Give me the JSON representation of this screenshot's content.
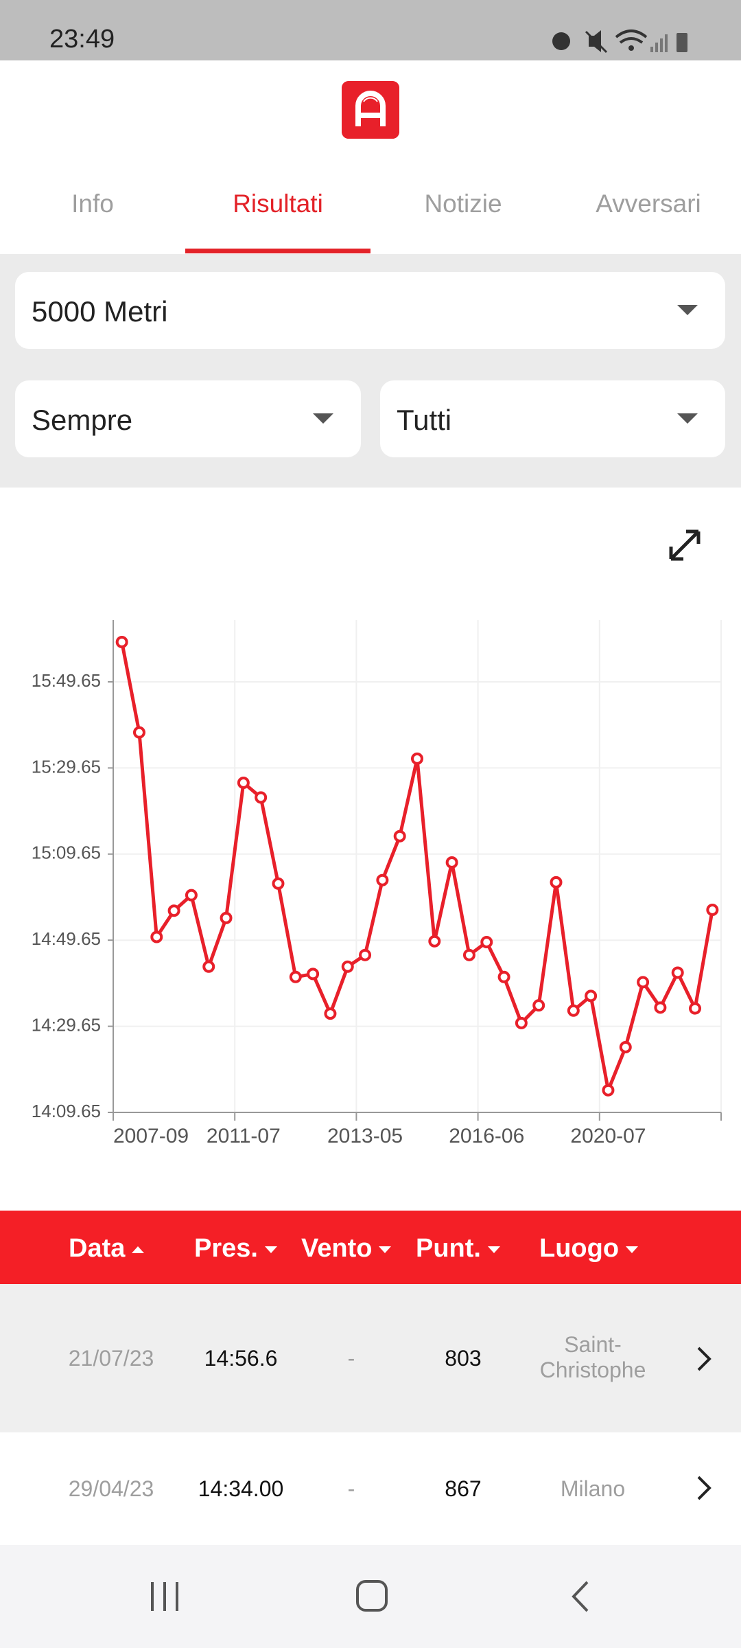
{
  "status_bar": {
    "time": "23:49"
  },
  "tabs": [
    "Info",
    "Risultati",
    "Notizie",
    "Avversari"
  ],
  "filters": {
    "event": "5000 Metri",
    "period": "Sempre",
    "scope": "Tutti"
  },
  "chart_data": {
    "type": "line",
    "categories": [
      "2007-09",
      null,
      null,
      null,
      null,
      null,
      null,
      "2011-07",
      null,
      null,
      null,
      null,
      null,
      null,
      "2013-05",
      null,
      null,
      null,
      null,
      null,
      null,
      "2016-06",
      null,
      null,
      null,
      null,
      null,
      null,
      "2020-07",
      null,
      null,
      null,
      null,
      null,
      null
    ],
    "values": [
      958.9,
      937.9,
      890.4,
      896.5,
      900.1,
      883.5,
      894.8,
      926.2,
      922.8,
      902.8,
      881.1,
      881.8,
      872.6,
      883.5,
      886.2,
      903.6,
      913.8,
      931.8,
      889.4,
      907.7,
      886.2,
      889.2,
      881.1,
      870.4,
      874.5,
      903.1,
      873.3,
      876.7,
      854.8,
      864.8,
      879.9,
      874.0,
      882.1,
      873.8,
      896.7
    ],
    "color": "#e8202a",
    "ylim": [
      849.65,
      964
    ],
    "yticks": [
      {
        "value": 849.65,
        "label": "14:09.65"
      },
      {
        "value": 869.65,
        "label": "14:29.65"
      },
      {
        "value": 889.65,
        "label": "14:49.65"
      },
      {
        "value": 909.65,
        "label": "15:09.65"
      },
      {
        "value": 929.65,
        "label": "15:29.65"
      },
      {
        "value": 949.65,
        "label": "15:49.65"
      }
    ],
    "grid": true
  },
  "table": {
    "headers": [
      "Data",
      "Pres.",
      "Vento",
      "Punt.",
      "Luogo"
    ],
    "rows": [
      [
        "21/07/23",
        "14:56.6",
        "-",
        "803",
        "Saint-Christophe"
      ],
      [
        "29/04/23",
        "14:34.00",
        "-",
        "867",
        "Milano"
      ]
    ]
  }
}
